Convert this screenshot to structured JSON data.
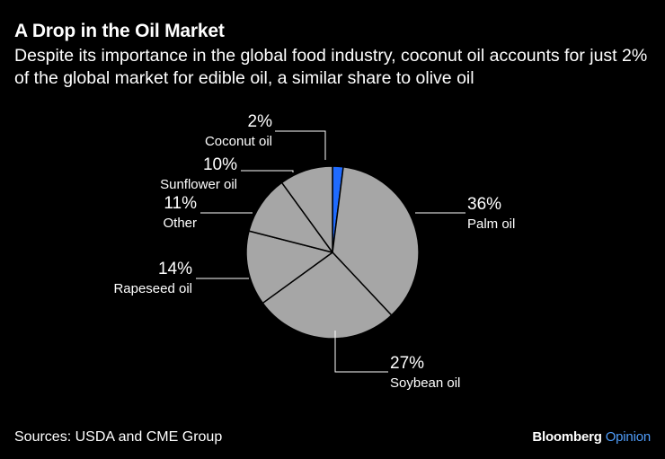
{
  "header": {
    "title": "A Drop in the Oil Market",
    "subtitle": "Despite its importance in the global food industry, coconut oil accounts for just 2% of the global market for edible oil, a similar share to olive oil"
  },
  "footer": {
    "source": "Sources: USDA and CME Group",
    "brand_main": "Bloomberg",
    "brand_sub": "Opinion"
  },
  "colors": {
    "slice": "#a6a6a6",
    "highlight": "#1f6bff",
    "background": "#000000",
    "text": "#ffffff",
    "brand_accent": "#4f9cf9"
  },
  "chart_data": {
    "type": "pie",
    "slices": [
      {
        "label": "Coconut oil",
        "value": 2,
        "value_label": "2%",
        "highlight": true
      },
      {
        "label": "Palm oil",
        "value": 36,
        "value_label": "36%",
        "highlight": false
      },
      {
        "label": "Soybean oil",
        "value": 27,
        "value_label": "27%",
        "highlight": false
      },
      {
        "label": "Rapeseed oil",
        "value": 14,
        "value_label": "14%",
        "highlight": false
      },
      {
        "label": "Other",
        "value": 11,
        "value_label": "11%",
        "highlight": false
      },
      {
        "label": "Sunflower oil",
        "value": 10,
        "value_label": "10%",
        "highlight": false
      }
    ]
  }
}
